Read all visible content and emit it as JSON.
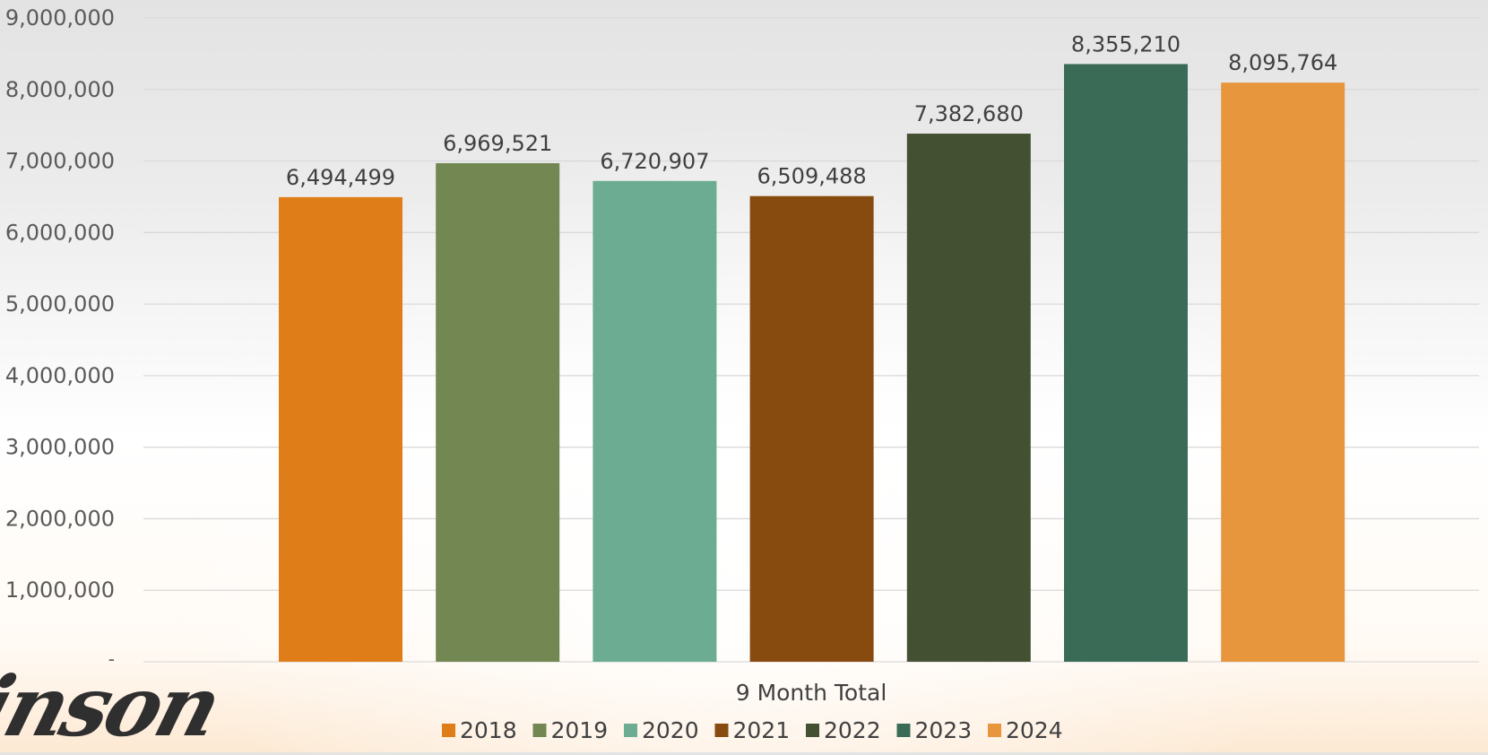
{
  "chart_data": {
    "type": "bar",
    "categories": [
      "9 Month Total"
    ],
    "series": [
      {
        "name": "2018",
        "color": "#DF7D18",
        "values": [
          6494499
        ],
        "label": "6,494,499"
      },
      {
        "name": "2019",
        "color": "#738752",
        "values": [
          6969521
        ],
        "label": "6,969,521"
      },
      {
        "name": "2020",
        "color": "#6BAC92",
        "values": [
          6720907
        ],
        "label": "6,720,907"
      },
      {
        "name": "2021",
        "color": "#874A0F",
        "values": [
          6509488
        ],
        "label": "6,509,488"
      },
      {
        "name": "2022",
        "color": "#435032",
        "values": [
          7382680
        ],
        "label": "7,382,680"
      },
      {
        "name": "2023",
        "color": "#3A6B57",
        "values": [
          8355210
        ],
        "label": "8,355,210"
      },
      {
        "name": "2024",
        "color": "#E8963E",
        "values": [
          8095764
        ],
        "label": "8,095,764"
      }
    ],
    "ylim": [
      0,
      9000000
    ],
    "yticks": [
      {
        "value": 0,
        "label": "-"
      },
      {
        "value": 1000000,
        "label": "1,000,000"
      },
      {
        "value": 2000000,
        "label": "2,000,000"
      },
      {
        "value": 3000000,
        "label": "3,000,000"
      },
      {
        "value": 4000000,
        "label": "4,000,000"
      },
      {
        "value": 5000000,
        "label": "5,000,000"
      },
      {
        "value": 6000000,
        "label": "6,000,000"
      },
      {
        "value": 7000000,
        "label": "7,000,000"
      },
      {
        "value": 8000000,
        "label": "8,000,000"
      },
      {
        "value": 9000000,
        "label": "9,000,000"
      }
    ],
    "xlabel": "",
    "ylabel": "",
    "grid": true,
    "legend_position": "bottom",
    "gridline_color": "#D9D9D9"
  },
  "logo": {
    "text": "inson"
  }
}
